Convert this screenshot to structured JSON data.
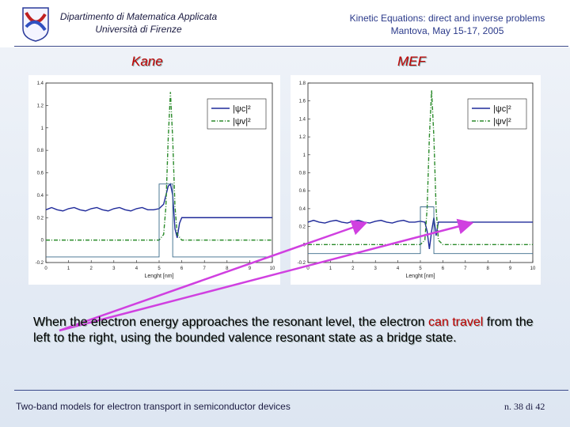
{
  "header": {
    "left_line1": "Dipartimento di Matematica Applicata",
    "left_line2": "Università di Firenze",
    "right_line1": "Kinetic Equations: direct and inverse problems",
    "right_line2": "Mantova, May 15-17, 2005"
  },
  "chart_data": [
    {
      "type": "line",
      "title": "Kane",
      "xlabel": "Lenght [nm]",
      "xlim": [
        0,
        10
      ],
      "ylim": [
        -0.2,
        1.4
      ],
      "xticks": [
        "0",
        "1",
        "2",
        "3",
        "4",
        "5",
        "6",
        "7",
        "8",
        "9",
        "10"
      ],
      "yticks": [
        "-0.2",
        "0",
        "0.2",
        "0.4",
        "0.6",
        "0.8",
        "1",
        "1.2",
        "1.4"
      ],
      "legend": "top-right",
      "series": [
        {
          "name": "|ψc|²",
          "style": "solid",
          "color": "#1f2a9a",
          "x": [
            0,
            0.25,
            0.5,
            0.75,
            1,
            1.25,
            1.5,
            1.75,
            2,
            2.25,
            2.5,
            2.75,
            3,
            3.25,
            3.5,
            3.75,
            4,
            4.25,
            4.5,
            4.75,
            5,
            5.2,
            5.4,
            5.5,
            5.6,
            5.7,
            5.8,
            5.9,
            6,
            6.25,
            6.5,
            7,
            7.5,
            8,
            8.5,
            9,
            9.5,
            10
          ],
          "y": [
            0.27,
            0.29,
            0.27,
            0.26,
            0.28,
            0.29,
            0.27,
            0.26,
            0.28,
            0.29,
            0.27,
            0.26,
            0.28,
            0.29,
            0.27,
            0.26,
            0.28,
            0.29,
            0.27,
            0.27,
            0.28,
            0.32,
            0.48,
            0.5,
            0.4,
            0.1,
            0.02,
            0.15,
            0.2,
            0.2,
            0.2,
            0.2,
            0.2,
            0.2,
            0.2,
            0.2,
            0.2,
            0.2
          ]
        },
        {
          "name": "|ψv|²",
          "style": "dash-dot",
          "color": "#2a8a2a",
          "x": [
            0,
            1,
            2,
            3,
            4,
            5,
            5.2,
            5.3,
            5.4,
            5.5,
            5.6,
            5.7,
            5.8,
            6,
            7,
            8,
            9,
            10
          ],
          "y": [
            0,
            0,
            0,
            0,
            0,
            0,
            0.05,
            0.3,
            0.9,
            1.32,
            0.9,
            0.3,
            0.05,
            0,
            0,
            0,
            0,
            0
          ]
        },
        {
          "name": "",
          "style": "step",
          "color": "#3a6a8a",
          "x": [
            0,
            5,
            5,
            5.6,
            5.6,
            10
          ],
          "y": [
            -0.15,
            -0.15,
            0.5,
            0.5,
            -0.15,
            -0.15
          ]
        }
      ]
    },
    {
      "type": "line",
      "title": "MEF",
      "xlabel": "Lenght [nm]",
      "xlim": [
        0,
        10
      ],
      "ylim": [
        -0.2,
        1.8
      ],
      "xticks": [
        "0",
        "1",
        "2",
        "3",
        "4",
        "5",
        "6",
        "7",
        "8",
        "9",
        "10"
      ],
      "yticks": [
        "-0.2",
        "0",
        "0.2",
        "0.4",
        "0.6",
        "0.8",
        "1",
        "1.2",
        "1.4",
        "1.6",
        "1.8"
      ],
      "legend": "top-right",
      "series": [
        {
          "name": "|ψc|²",
          "style": "solid",
          "color": "#1f2a9a",
          "x": [
            0,
            0.25,
            0.5,
            0.75,
            1,
            1.25,
            1.5,
            1.75,
            2,
            2.25,
            2.5,
            2.75,
            3,
            3.25,
            3.5,
            3.75,
            4,
            4.25,
            4.5,
            4.75,
            5,
            5.2,
            5.3,
            5.4,
            5.5,
            5.6,
            5.7,
            5.8,
            6,
            7,
            8,
            9,
            10
          ],
          "y": [
            0.25,
            0.27,
            0.25,
            0.24,
            0.26,
            0.27,
            0.25,
            0.24,
            0.26,
            0.27,
            0.25,
            0.24,
            0.26,
            0.27,
            0.25,
            0.24,
            0.26,
            0.27,
            0.25,
            0.25,
            0.26,
            0.25,
            0.15,
            -0.05,
            0.15,
            0.3,
            0.1,
            0.25,
            0.25,
            0.25,
            0.25,
            0.25,
            0.25
          ]
        },
        {
          "name": "|ψv|²",
          "style": "dash-dot",
          "color": "#2a8a2a",
          "x": [
            0,
            1,
            2,
            3,
            4,
            5,
            5.2,
            5.3,
            5.4,
            5.5,
            5.6,
            5.7,
            5.8,
            6,
            7,
            8,
            9,
            10
          ],
          "y": [
            0,
            0,
            0,
            0,
            0,
            0,
            0.05,
            0.4,
            1.2,
            1.72,
            1.2,
            0.4,
            0.05,
            0,
            0,
            0,
            0,
            0
          ]
        },
        {
          "name": "",
          "style": "step",
          "color": "#3a6a8a",
          "x": [
            0,
            5,
            5,
            5.6,
            5.6,
            10
          ],
          "y": [
            -0.1,
            -0.1,
            0.42,
            0.42,
            -0.1,
            -0.1
          ]
        }
      ]
    }
  ],
  "caption": {
    "part1": "When the electron energy approaches the resonant level, the electron ",
    "part2": "can travel",
    "part3": " from the left to the right, using the bounded valence resonant state as a bridge state."
  },
  "footer": {
    "left": "Two-band models for electron transport in semiconductor devices",
    "page": "n. 38 di 42"
  },
  "colors": {
    "accent_red": "#c00000",
    "arrow": "#d040e0"
  }
}
